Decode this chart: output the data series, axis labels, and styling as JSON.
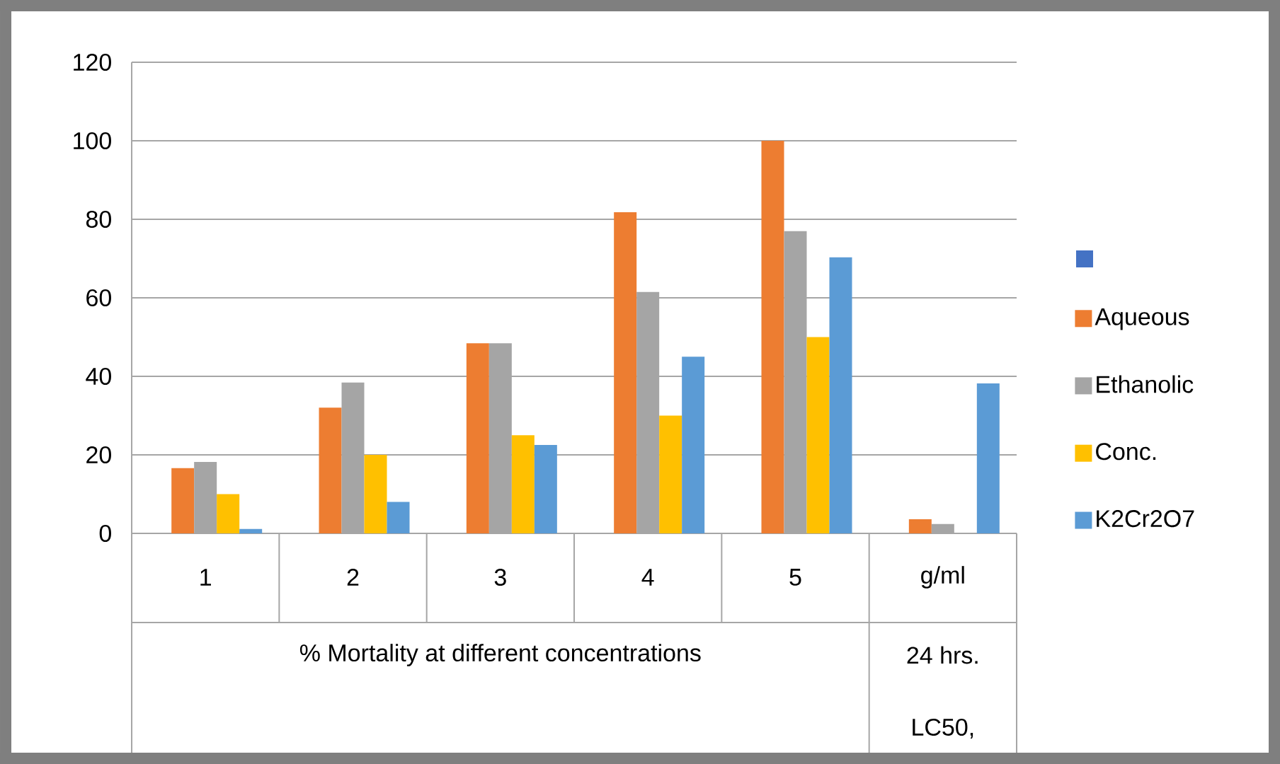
{
  "chart_data": {
    "type": "bar",
    "categories": [
      "1",
      "2",
      "3",
      "4",
      "5",
      "g/ml"
    ],
    "annotations": [
      "% Mortality at different concentrations",
      "24 hrs.",
      "LC50,"
    ],
    "series": [
      {
        "color": "#4472c4",
        "values": [
          null,
          null,
          null,
          null,
          null,
          null
        ]
      },
      {
        "name": "Aqueous",
        "color": "#ed7d31",
        "values": [
          16.6,
          32,
          48.4,
          81.8,
          100,
          3.6
        ]
      },
      {
        "name": "Ethanolic",
        "color": "#a5a5a5",
        "values": [
          18.2,
          38.4,
          48.4,
          61.5,
          77,
          2.4
        ]
      },
      {
        "name": "Conc.",
        "color": "#ffc000",
        "values": [
          10,
          20,
          25,
          30,
          50,
          null
        ]
      },
      {
        "name": "K2Cr2O7",
        "color": "#5b9bd5",
        "values": [
          1.1,
          8,
          22.5,
          45,
          70.3,
          38.2
        ]
      }
    ],
    "ylim": [
      0,
      120
    ],
    "yticks": [
      0,
      20,
      40,
      60,
      80,
      100,
      120
    ],
    "grid": "y",
    "legend": "right"
  }
}
